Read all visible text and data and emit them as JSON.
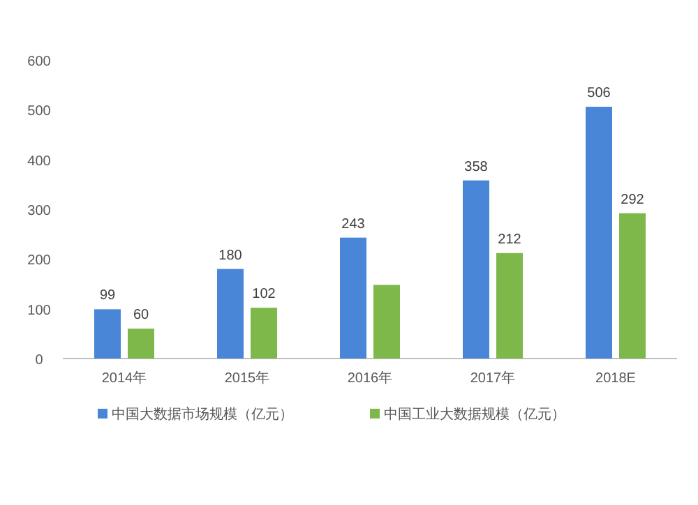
{
  "chart_data": {
    "type": "bar",
    "categories": [
      "2014年",
      "2015年",
      "2016年",
      "2017年",
      "2018E"
    ],
    "series": [
      {
        "name": "中国大数据市场规模（亿元）",
        "color": "#4a86d8",
        "values": [
          99,
          180,
          243,
          358,
          506
        ],
        "value_labels": [
          "99",
          "180",
          "243",
          "358",
          "506"
        ]
      },
      {
        "name": "中国工业大数据规模（亿元）",
        "color": "#7fb84a",
        "values": [
          60,
          102,
          148,
          212,
          292
        ],
        "value_labels": [
          "60",
          "102",
          null,
          "212",
          "292"
        ]
      }
    ],
    "ylim": [
      0,
      600
    ],
    "yticks": [
      0,
      100,
      200,
      300,
      400,
      500,
      600
    ],
    "grid": false,
    "legend": "bottom"
  }
}
